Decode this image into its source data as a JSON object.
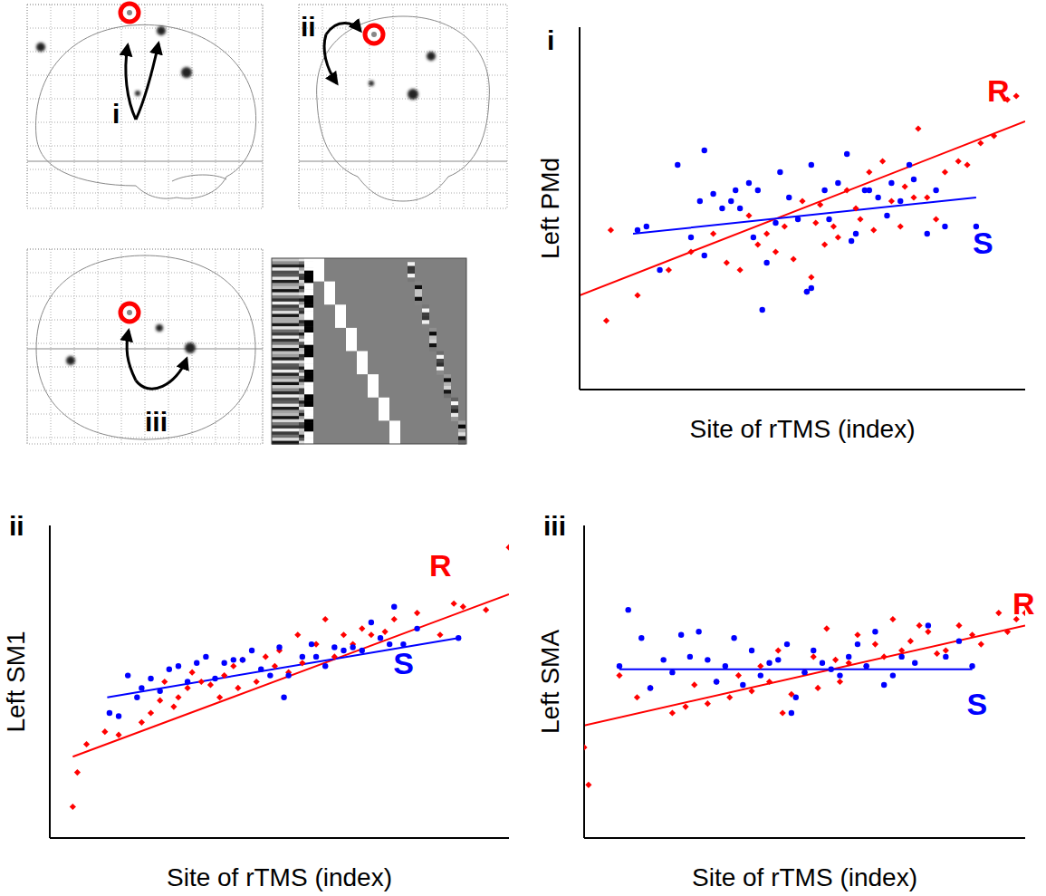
{
  "chart_data": [
    {
      "type": "scatter",
      "panel": "i",
      "xlabel": "Site of rTMS (index)",
      "ylabel": "Left PMd",
      "xlim": [
        0,
        100
      ],
      "ylim": [
        0,
        100
      ],
      "tick_labels": false,
      "series": [
        {
          "name": "R",
          "color": "#ff0000",
          "marker": "diamond",
          "x": [
            6,
            7,
            13,
            20,
            25,
            30,
            33,
            36,
            38,
            40,
            42,
            44,
            46,
            48,
            50,
            51,
            52,
            53,
            54,
            55,
            57,
            58,
            60,
            62,
            63,
            65,
            66,
            68,
            70,
            72,
            73,
            75,
            76,
            78,
            80,
            82,
            85,
            87,
            90,
            93,
            96,
            98
          ],
          "values": [
            19,
            44,
            26,
            33,
            38,
            43,
            35,
            33,
            48,
            40,
            43,
            38,
            45,
            36,
            52,
            27,
            31,
            46,
            51,
            40,
            45,
            42,
            55,
            50,
            47,
            60,
            44,
            63,
            52,
            45,
            56,
            53,
            72,
            53,
            47,
            60,
            63,
            62,
            68,
            70,
            80,
            81
          ],
          "fit": {
            "x": [
              0,
              100
            ],
            "y": [
              26,
              74
            ]
          }
        },
        {
          "name": "S",
          "color": "#0000ff",
          "marker": "circle",
          "x": [
            13,
            15,
            18,
            22,
            25,
            27,
            28,
            28,
            30,
            32,
            34,
            35,
            36,
            38,
            39,
            40,
            41,
            42,
            44,
            45,
            47,
            49,
            51,
            52,
            52,
            55,
            56,
            58,
            60,
            61,
            62,
            64,
            65,
            67,
            69,
            70,
            72,
            74,
            75,
            78,
            80,
            82,
            89
          ],
          "values": [
            44,
            45,
            33,
            62,
            42,
            52,
            66,
            37,
            54,
            50,
            52,
            55,
            50,
            57,
            42,
            55,
            22,
            35,
            46,
            60,
            53,
            47,
            27,
            28,
            62,
            55,
            47,
            57,
            65,
            41,
            43,
            55,
            55,
            53,
            48,
            57,
            52,
            62,
            58,
            43,
            55,
            45,
            45
          ],
          "fit": {
            "x": [
              12,
              89
            ],
            "y": [
              43,
              53
            ]
          }
        }
      ]
    },
    {
      "type": "scatter",
      "panel": "ii",
      "xlabel": "Site of rTMS (index)",
      "ylabel": "Left SM1",
      "xlim": [
        0,
        100
      ],
      "ylim": [
        0,
        100
      ],
      "tick_labels": false,
      "series": [
        {
          "name": "R",
          "color": "#ff0000",
          "marker": "diamond",
          "x": [
            5,
            6,
            8,
            12,
            15,
            20,
            22,
            24,
            25,
            27,
            28,
            30,
            31,
            33,
            35,
            37,
            38,
            40,
            41,
            42,
            45,
            47,
            49,
            50,
            52,
            54,
            55,
            58,
            60,
            62,
            64,
            66,
            68,
            70,
            73,
            75,
            80,
            85,
            88,
            90,
            95,
            100
          ],
          "values": [
            10,
            21,
            30,
            34,
            33,
            37,
            40,
            44,
            50,
            42,
            45,
            48,
            53,
            50,
            49,
            45,
            52,
            55,
            48,
            57,
            50,
            58,
            55,
            60,
            53,
            65,
            56,
            62,
            70,
            58,
            65,
            62,
            67,
            65,
            66,
            70,
            72,
            65,
            75,
            74,
            73,
            93
          ],
          "fit": {
            "x": [
              5,
              100
            ],
            "y": [
              26,
              78
            ]
          }
        },
        {
          "name": "S",
          "color": "#0000ff",
          "marker": "circle",
          "x": [
            13,
            15,
            17,
            19,
            20,
            22,
            24,
            26,
            28,
            30,
            32,
            34,
            36,
            38,
            40,
            42,
            44,
            46,
            48,
            50,
            51,
            52,
            55,
            57,
            58,
            60,
            62,
            64,
            66,
            68,
            70,
            72,
            74,
            75,
            77,
            80,
            89
          ],
          "values": [
            40,
            39,
            52,
            45,
            48,
            51,
            47,
            54,
            55,
            50,
            56,
            58,
            51,
            56,
            57,
            57,
            60,
            54,
            52,
            61,
            45,
            52,
            58,
            62,
            58,
            55,
            61,
            60,
            61,
            60,
            69,
            64,
            62,
            74,
            62,
            67,
            64
          ],
          "fit": {
            "x": [
              12.5,
              89
            ],
            "y": [
              45,
              64
            ]
          }
        }
      ]
    },
    {
      "type": "scatter",
      "panel": "iii",
      "xlabel": "Site of rTMS (index)",
      "ylabel": "Left SMA",
      "xlim": [
        0,
        100
      ],
      "ylim": [
        0,
        100
      ],
      "tick_labels": false,
      "series": [
        {
          "name": "R",
          "color": "#ff0000",
          "marker": "diamond",
          "x": [
            0,
            1,
            8,
            12,
            15,
            20,
            23,
            25,
            28,
            30,
            33,
            35,
            38,
            40,
            42,
            44,
            45,
            47,
            50,
            52,
            53,
            55,
            57,
            58,
            60,
            62,
            64,
            66,
            68,
            70,
            72,
            74,
            76,
            78,
            80,
            82,
            85,
            88,
            90,
            94,
            96,
            98,
            100
          ],
          "values": [
            29,
            17,
            52,
            45,
            48,
            40,
            42,
            49,
            43,
            50,
            45,
            52,
            47,
            55,
            50,
            60,
            40,
            46,
            53,
            58,
            48,
            67,
            57,
            50,
            56,
            65,
            55,
            62,
            58,
            70,
            60,
            63,
            68,
            66,
            59,
            60,
            68,
            65,
            62,
            72,
            66,
            70,
            72
          ],
          "fit": {
            "x": [
              0,
              100
            ],
            "y": [
              36,
              68
            ]
          }
        },
        {
          "name": "S",
          "color": "#0000ff",
          "marker": "circle",
          "x": [
            8,
            10,
            13,
            15,
            18,
            20,
            22,
            24,
            26,
            28,
            30,
            32,
            34,
            36,
            38,
            40,
            42,
            44,
            46,
            47,
            48,
            50,
            52,
            54,
            56,
            58,
            60,
            62,
            64,
            66,
            68,
            70,
            72,
            75,
            78,
            82,
            85,
            88
          ],
          "values": [
            55,
            73,
            64,
            48,
            57,
            53,
            65,
            58,
            66,
            57,
            50,
            55,
            64,
            49,
            60,
            52,
            56,
            57,
            62,
            40,
            45,
            53,
            60,
            56,
            54,
            52,
            58,
            62,
            55,
            66,
            49,
            52,
            58,
            56,
            68,
            58,
            63,
            55
          ],
          "fit": {
            "x": [
              8,
              88
            ],
            "y": [
              54,
              54
            ]
          }
        }
      ]
    }
  ]
}
